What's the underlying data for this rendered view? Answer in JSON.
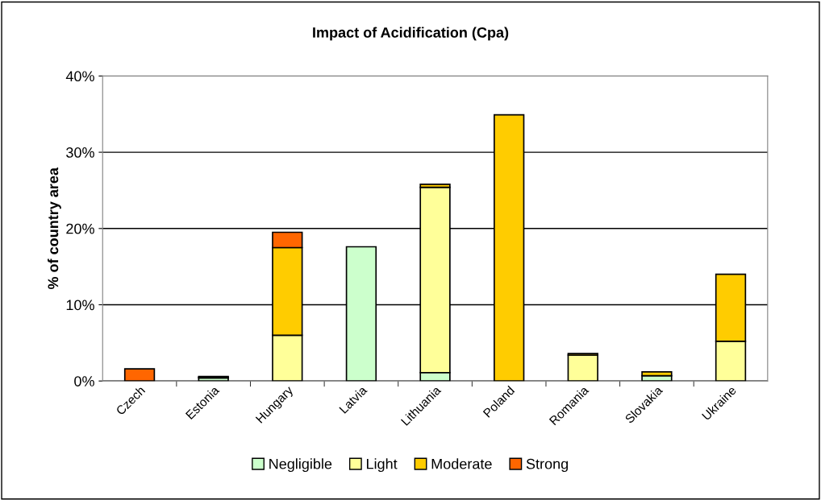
{
  "chart_data": {
    "type": "bar",
    "stacked": true,
    "title": "Impact of Acidification (Cpa)",
    "ylabel": "% of country area",
    "categories": [
      "Czech",
      "Estonia",
      "Hungary",
      "Latvia",
      "Lithuania",
      "Poland",
      "Romania",
      "Slovakia",
      "Ukraine"
    ],
    "series": [
      {
        "name": "Negligible",
        "color": "#ccffcc",
        "values": [
          null,
          0.4,
          null,
          17.6,
          1.1,
          null,
          null,
          0.7,
          null
        ]
      },
      {
        "name": "Light",
        "color": "#ffff99",
        "values": [
          null,
          0.1,
          6.0,
          null,
          24.3,
          null,
          3.4,
          null,
          5.2
        ]
      },
      {
        "name": "Moderate",
        "color": "#ffcc00",
        "values": [
          null,
          0.1,
          11.5,
          null,
          0.4,
          34.9,
          0.2,
          0.5,
          8.8
        ]
      },
      {
        "name": "Strong",
        "color": "#ff6600",
        "values": [
          1.6,
          null,
          2.0,
          null,
          null,
          null,
          null,
          null,
          null
        ]
      }
    ],
    "ylim": [
      0,
      40
    ],
    "yticks": [
      {
        "value": 0,
        "label": "0%"
      },
      {
        "value": 10,
        "label": "10%"
      },
      {
        "value": 20,
        "label": "20%"
      },
      {
        "value": 30,
        "label": "30%"
      },
      {
        "value": 40,
        "label": "40%"
      }
    ],
    "grid": "y",
    "legend": "bottom"
  }
}
